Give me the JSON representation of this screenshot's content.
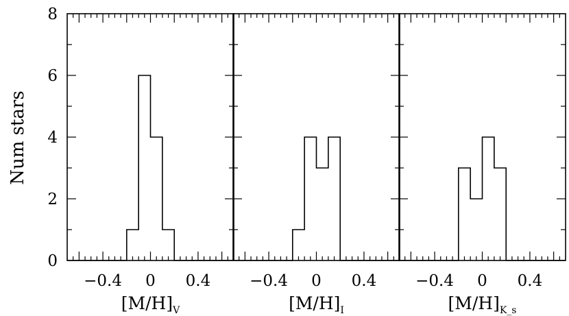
{
  "chart_data": [
    {
      "type": "histogram",
      "ylabel": "Num stars",
      "xlabel": "[M/H]",
      "xlabel_subscript": "V",
      "xlim": [
        -0.7,
        0.7
      ],
      "ylim": [
        0,
        8
      ],
      "x_ticks": [
        "−0.4",
        "0",
        "0.4"
      ],
      "y_ticks": [
        "0",
        "2",
        "4",
        "6",
        "8"
      ],
      "bin_edges": [
        -0.2,
        -0.1,
        0.0,
        0.1,
        0.2,
        0.3
      ],
      "values": [
        1,
        6,
        4,
        1,
        0
      ]
    },
    {
      "type": "histogram",
      "ylabel": "Num stars",
      "xlabel": "[M/H]",
      "xlabel_subscript": "I",
      "xlim": [
        -0.7,
        0.7
      ],
      "ylim": [
        0,
        8
      ],
      "x_ticks": [
        "−0.4",
        "0",
        "0.4"
      ],
      "y_ticks": [
        "0",
        "2",
        "4",
        "6",
        "8"
      ],
      "bin_edges": [
        -0.2,
        -0.1,
        0.0,
        0.1,
        0.2,
        0.3
      ],
      "values": [
        1,
        4,
        3,
        4,
        0
      ]
    },
    {
      "type": "histogram",
      "ylabel": "Num stars",
      "xlabel": "[M/H]",
      "xlabel_subscript": "K_s",
      "xlim": [
        -0.7,
        0.7
      ],
      "ylim": [
        0,
        8
      ],
      "x_ticks": [
        "−0.4",
        "0",
        "0.4"
      ],
      "y_ticks": [
        "0",
        "2",
        "4",
        "6",
        "8"
      ],
      "bin_edges": [
        -0.2,
        -0.1,
        0.0,
        0.1,
        0.2,
        0.3
      ],
      "values": [
        3,
        2,
        4,
        3,
        0
      ]
    }
  ]
}
